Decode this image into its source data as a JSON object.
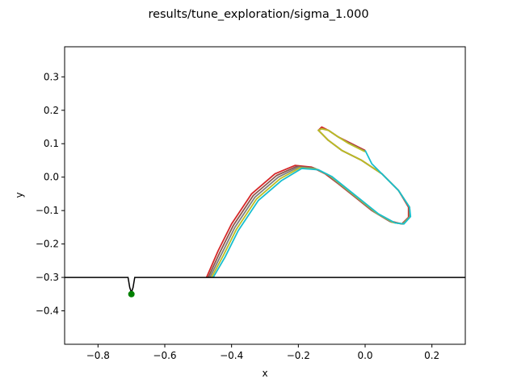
{
  "chart_data": {
    "type": "line",
    "title": "results/tune_exploration/sigma_1.000",
    "xlabel": "x",
    "ylabel": "y",
    "xlim": [
      -0.9,
      0.3
    ],
    "ylim": [
      -0.5,
      0.39
    ],
    "xticks": [
      -0.8,
      -0.6,
      -0.4,
      -0.2,
      0.0,
      0.2
    ],
    "xtick_labels": [
      "−0.8",
      "−0.6",
      "−0.4",
      "−0.2",
      "0.0",
      "0.2"
    ],
    "yticks": [
      -0.4,
      -0.3,
      -0.2,
      -0.1,
      0.0,
      0.1,
      0.2,
      0.3
    ],
    "ytick_labels": [
      "−0.4",
      "−0.3",
      "−0.2",
      "−0.1",
      "0.0",
      "0.1",
      "0.2",
      "0.3"
    ],
    "grid": false,
    "legend": "none",
    "ground": {
      "color": "#000000",
      "x": [
        -0.9,
        -0.71,
        -0.705,
        -0.7,
        -0.695,
        -0.69,
        0.3
      ],
      "y": [
        -0.3,
        -0.3,
        -0.33,
        -0.345,
        -0.33,
        -0.3,
        -0.3
      ]
    },
    "marker": {
      "color": "#008000",
      "x": -0.7,
      "y": -0.35
    },
    "series": [
      {
        "color": "#d62728",
        "x": [
          -0.475,
          -0.44,
          -0.4,
          -0.34,
          -0.27,
          -0.21,
          -0.16,
          -0.12,
          -0.08,
          -0.03,
          0.02,
          0.07,
          0.11,
          0.13,
          0.13,
          0.1,
          0.05,
          -0.01,
          -0.07,
          -0.11,
          -0.13,
          -0.14,
          -0.13,
          -0.11,
          -0.08,
          -0.05,
          -0.02,
          0.0
        ],
        "y": [
          -0.3,
          -0.22,
          -0.14,
          -0.05,
          0.01,
          0.035,
          0.03,
          0.01,
          -0.02,
          -0.06,
          -0.1,
          -0.13,
          -0.14,
          -0.12,
          -0.09,
          -0.04,
          0.01,
          0.05,
          0.08,
          0.11,
          0.13,
          0.14,
          0.15,
          0.14,
          0.12,
          0.105,
          0.09,
          0.08
        ]
      },
      {
        "color": "#8c564b",
        "x": [
          -0.47,
          -0.435,
          -0.395,
          -0.335,
          -0.265,
          -0.205,
          -0.155,
          -0.115,
          -0.075,
          -0.025,
          0.025,
          0.075,
          0.11,
          0.132,
          0.132,
          0.1,
          0.05,
          -0.01,
          -0.07,
          -0.11,
          -0.13,
          -0.14,
          -0.13,
          -0.11,
          -0.08,
          -0.05,
          -0.02,
          0.0
        ],
        "y": [
          -0.3,
          -0.225,
          -0.145,
          -0.055,
          0.005,
          0.032,
          0.028,
          0.008,
          -0.023,
          -0.063,
          -0.103,
          -0.133,
          -0.14,
          -0.12,
          -0.09,
          -0.04,
          0.01,
          0.05,
          0.08,
          0.11,
          0.13,
          0.14,
          0.145,
          0.14,
          0.12,
          0.103,
          0.088,
          0.078
        ]
      },
      {
        "color": "#7f7f7f",
        "x": [
          -0.465,
          -0.43,
          -0.39,
          -0.33,
          -0.26,
          -0.2,
          -0.15,
          -0.11,
          -0.07,
          -0.02,
          0.03,
          0.08,
          0.112,
          0.134,
          0.133,
          0.1,
          0.05,
          -0.01,
          -0.07,
          -0.11,
          -0.13,
          -0.14,
          -0.13,
          -0.11,
          -0.08,
          -0.05,
          -0.02,
          0.0
        ],
        "y": [
          -0.3,
          -0.23,
          -0.15,
          -0.06,
          0.0,
          0.03,
          0.026,
          0.006,
          -0.026,
          -0.066,
          -0.106,
          -0.135,
          -0.14,
          -0.118,
          -0.09,
          -0.04,
          0.01,
          0.05,
          0.08,
          0.11,
          0.13,
          0.14,
          0.145,
          0.14,
          0.12,
          0.102,
          0.087,
          0.077
        ]
      },
      {
        "color": "#bcbd22",
        "x": [
          -0.46,
          -0.425,
          -0.385,
          -0.325,
          -0.255,
          -0.195,
          -0.145,
          -0.105,
          -0.065,
          -0.015,
          0.035,
          0.085,
          0.114,
          0.135,
          0.133,
          0.1,
          0.05,
          -0.01,
          -0.07,
          -0.11,
          -0.13,
          -0.14,
          -0.13,
          -0.11,
          -0.08,
          -0.05,
          -0.02,
          0.0
        ],
        "y": [
          -0.3,
          -0.235,
          -0.155,
          -0.065,
          -0.005,
          0.028,
          0.024,
          0.004,
          -0.028,
          -0.068,
          -0.108,
          -0.136,
          -0.14,
          -0.118,
          -0.09,
          -0.04,
          0.01,
          0.05,
          0.08,
          0.11,
          0.13,
          0.14,
          0.145,
          0.14,
          0.12,
          0.101,
          0.086,
          0.076
        ]
      },
      {
        "color": "#17becf",
        "x": [
          -0.455,
          -0.42,
          -0.38,
          -0.32,
          -0.25,
          -0.19,
          -0.14,
          -0.1,
          -0.06,
          -0.01,
          0.04,
          0.09,
          0.116,
          0.136,
          0.133,
          0.1,
          0.05,
          0.02,
          0.0
        ],
        "y": [
          -0.3,
          -0.24,
          -0.16,
          -0.07,
          -0.01,
          0.026,
          0.022,
          0.002,
          -0.03,
          -0.07,
          -0.11,
          -0.137,
          -0.14,
          -0.118,
          -0.09,
          -0.04,
          0.01,
          0.04,
          0.08
        ]
      }
    ]
  }
}
